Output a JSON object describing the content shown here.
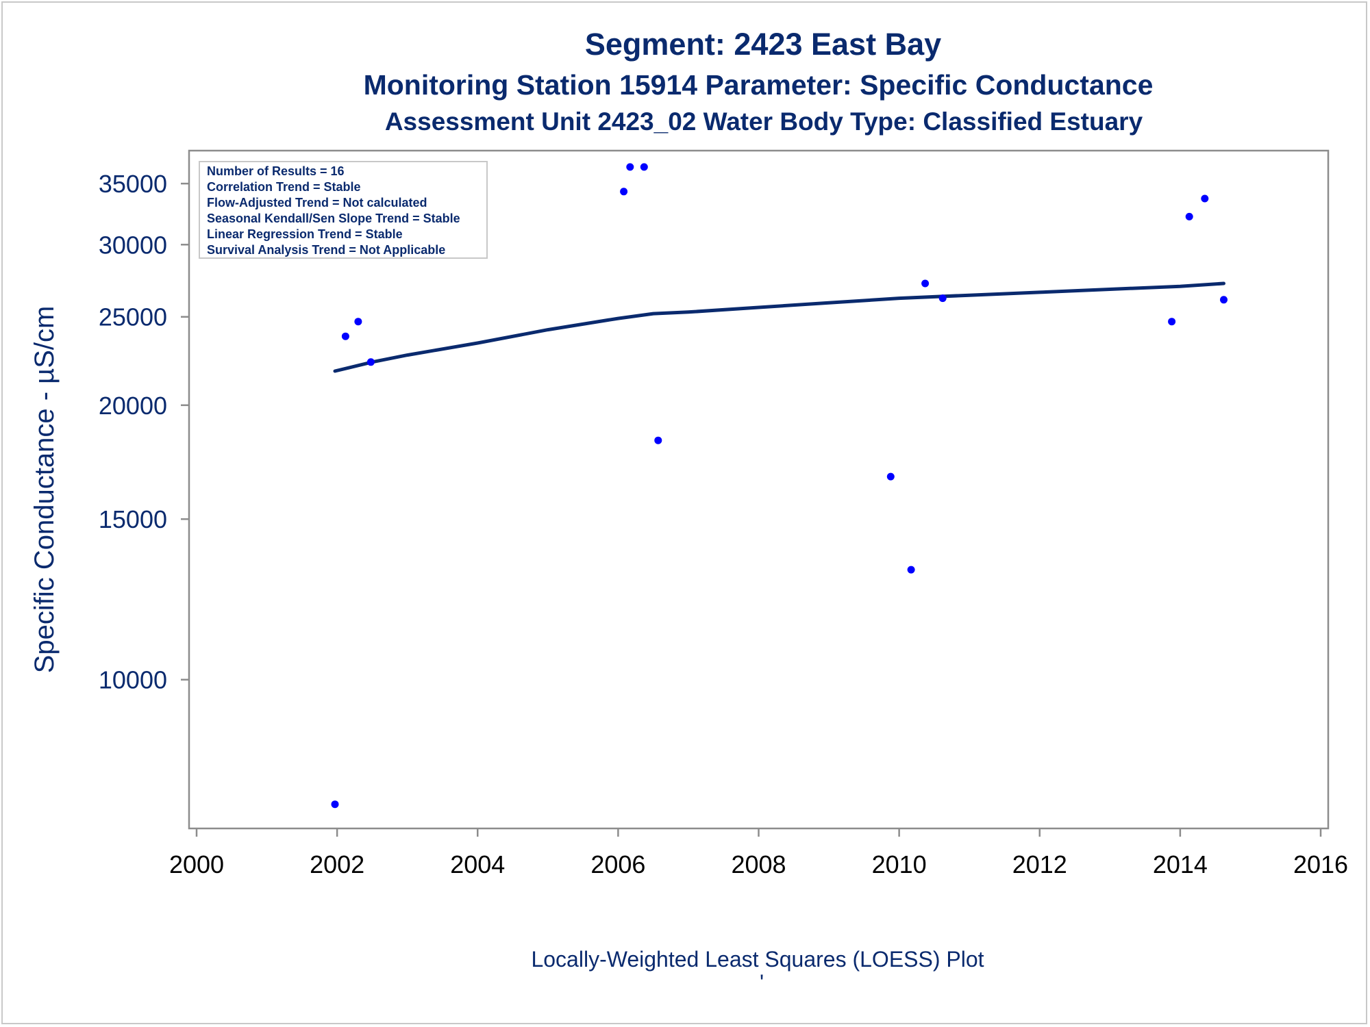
{
  "colors": {
    "title": "#0a2a6e",
    "points": "#0000ff",
    "loess_line": "#0a2a6e",
    "axis": "#8c8c8c"
  },
  "titles": {
    "line1": "Segment: 2423  East Bay",
    "line2": "Monitoring Station 15914 Parameter: Specific Conductance",
    "line3": "Assessment Unit 2423_02   Water Body Type: Classified Estuary"
  },
  "footnote": "Locally-Weighted Least Squares (LOESS) Plot",
  "footnote_mark": "'",
  "stats_box": [
    "Number of Results = 16",
    "Correlation Trend = Stable",
    "Flow-Adjusted Trend = Not calculated",
    "Seasonal Kendall/Sen Slope Trend = Stable",
    "Linear Regression Trend = Stable",
    "Survival Analysis Trend = Not Applicable"
  ],
  "chart_data": {
    "type": "scatter",
    "title": "Segment: 2423  East Bay",
    "xlabel": "",
    "ylabel": "Specific Conductance -  µS/cm",
    "y_scale": "log",
    "xlim": [
      2000,
      2016
    ],
    "ylim": [
      7000,
      37000
    ],
    "x_ticks": [
      2000,
      2002,
      2004,
      2006,
      2008,
      2010,
      2012,
      2014,
      2016
    ],
    "x_tick_labels": [
      "2000",
      "2002",
      "2004",
      "2006",
      "2008",
      "2010",
      "2012",
      "2014",
      "2016"
    ],
    "y_ticks": [
      10000,
      15000,
      20000,
      25000,
      30000,
      35000
    ],
    "y_tick_labels": [
      "10000",
      "15000",
      "20000",
      "25000",
      "30000",
      "35000"
    ],
    "legend": "top-left",
    "grid": false,
    "series": [
      {
        "type": "scatter",
        "points": [
          {
            "x": 2001.97,
            "y": 7300
          },
          {
            "x": 2002.12,
            "y": 23800
          },
          {
            "x": 2002.3,
            "y": 24700
          },
          {
            "x": 2002.48,
            "y": 22300
          },
          {
            "x": 2006.08,
            "y": 34300
          },
          {
            "x": 2006.17,
            "y": 36500
          },
          {
            "x": 2006.37,
            "y": 36500
          },
          {
            "x": 2006.57,
            "y": 18300
          },
          {
            "x": 2009.88,
            "y": 16700
          },
          {
            "x": 2010.17,
            "y": 13200
          },
          {
            "x": 2010.37,
            "y": 27200
          },
          {
            "x": 2010.62,
            "y": 26200
          },
          {
            "x": 2013.88,
            "y": 24700
          },
          {
            "x": 2014.13,
            "y": 32200
          },
          {
            "x": 2014.35,
            "y": 33700
          },
          {
            "x": 2014.62,
            "y": 26100
          }
        ]
      },
      {
        "type": "line",
        "points": [
          {
            "x": 2001.97,
            "y": 21800
          },
          {
            "x": 2002.5,
            "y": 22300
          },
          {
            "x": 2003.0,
            "y": 22700
          },
          {
            "x": 2004.0,
            "y": 23400
          },
          {
            "x": 2005.0,
            "y": 24200
          },
          {
            "x": 2006.0,
            "y": 24900
          },
          {
            "x": 2006.5,
            "y": 25200
          },
          {
            "x": 2007.0,
            "y": 25300
          },
          {
            "x": 2008.0,
            "y": 25600
          },
          {
            "x": 2009.0,
            "y": 25900
          },
          {
            "x": 2010.0,
            "y": 26200
          },
          {
            "x": 2011.0,
            "y": 26400
          },
          {
            "x": 2012.0,
            "y": 26600
          },
          {
            "x": 2013.0,
            "y": 26800
          },
          {
            "x": 2014.0,
            "y": 27000
          },
          {
            "x": 2014.62,
            "y": 27200
          }
        ]
      }
    ]
  }
}
